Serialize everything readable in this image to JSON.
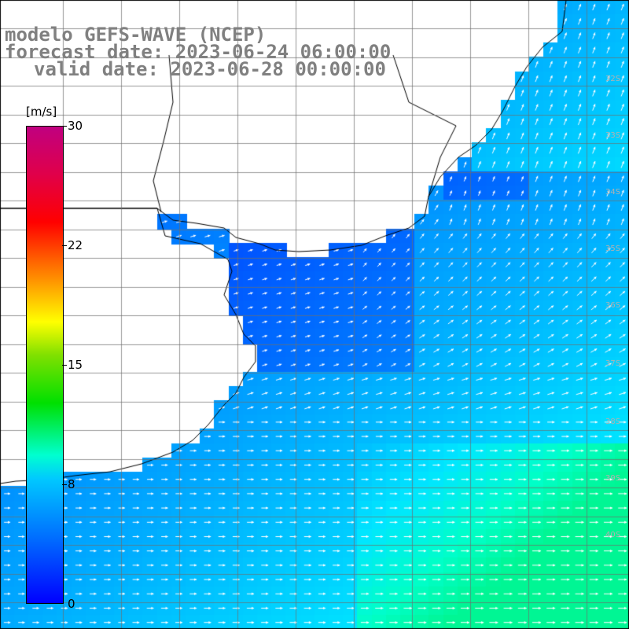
{
  "title": {
    "line1": "modelo GEFS-WAVE (NCEP)",
    "line2": "forecast date: 2023-06-24 06:00:00",
    "line3": "valid date: 2023-06-28 00:00:00"
  },
  "colorbar": {
    "unit": "[m/s]",
    "ticks": [
      "30",
      "22",
      "15",
      "8",
      "0"
    ],
    "colors": [
      "#0000ff",
      "#0070ff",
      "#00c8ff",
      "#00ffd0",
      "#00e000",
      "#ffff00",
      "#ff9000",
      "#ff0000",
      "#c00080"
    ]
  },
  "lat_labels": [
    "32S",
    "33S",
    "34S",
    "35S",
    "36S",
    "37S",
    "38S",
    "39S",
    "40S"
  ],
  "colors": {
    "land": "#ffffff",
    "coast": "#000000",
    "grid": "#808080",
    "arrow": "#ffffff"
  }
}
